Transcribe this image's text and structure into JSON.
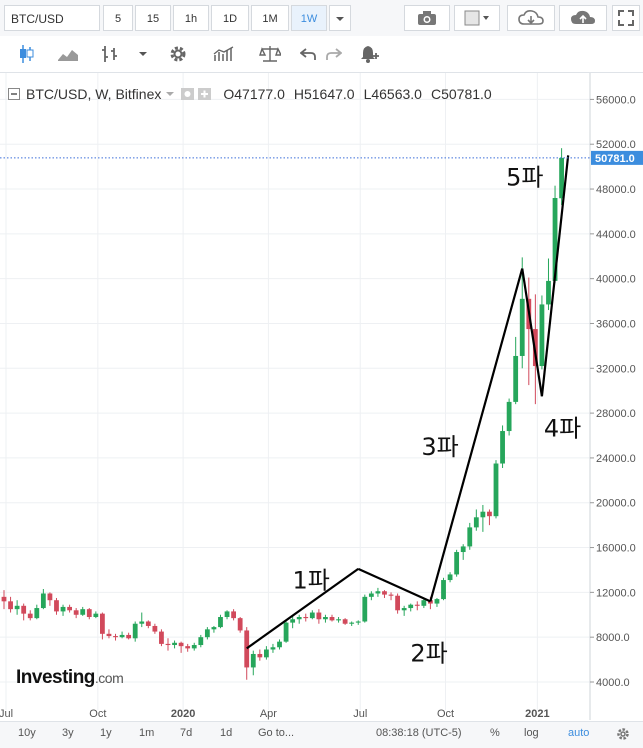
{
  "symbol": "BTC/USD",
  "timeframes": [
    "5",
    "15",
    "1h",
    "1D",
    "1M",
    "1W"
  ],
  "active_timeframe": "1W",
  "legend": {
    "title": "BTC/USD, W, Bitfinex",
    "open": "O47177.0",
    "high": "H51647.0",
    "low": "L46563.0",
    "close": "C50781.0"
  },
  "price_tag": "50781.0",
  "bottom": {
    "ranges": [
      "10y",
      "3y",
      "1y",
      "1m",
      "7d",
      "1d"
    ],
    "goto": "Go to...",
    "time": "08:38:18 (UTC-5)",
    "pct": "%",
    "log": "log",
    "auto": "auto"
  },
  "logo": {
    "main": "Investing",
    "suffix": ".com"
  },
  "colors": {
    "up": "#26a65b",
    "down": "#d1495b",
    "accent": "#3c8dde",
    "grid": "#eef0f3"
  },
  "chart_data": {
    "type": "candlestick",
    "title": "BTC/USD, W, Bitfinex",
    "y_ticks": [
      4000,
      8000,
      12000,
      16000,
      20000,
      24000,
      28000,
      32000,
      36000,
      40000,
      44000,
      48000,
      52000,
      56000
    ],
    "y_tick_labels": [
      "4000.0",
      "8000.0",
      "12000.0",
      "16000.0",
      "20000.0",
      "24000.0",
      "28000.0",
      "32000.0",
      "36000.0",
      "40000.0",
      "44000.0",
      "48000.0",
      "52000.0",
      "56000.0"
    ],
    "ylim": [
      1500,
      58000
    ],
    "x_tick_labels": [
      "Jul",
      "Oct",
      "2020",
      "Apr",
      "Jul",
      "Oct",
      "2021"
    ],
    "last_close": 50781.0,
    "candles": [
      [
        11600,
        12200,
        10500,
        11200
      ],
      [
        11200,
        11600,
        10200,
        10500
      ],
      [
        10500,
        11300,
        10000,
        10800
      ],
      [
        10800,
        11000,
        9500,
        10100
      ],
      [
        10100,
        10400,
        9500,
        9700
      ],
      [
        9700,
        10900,
        9600,
        10600
      ],
      [
        10600,
        12300,
        10500,
        11900
      ],
      [
        11900,
        12000,
        10800,
        11300
      ],
      [
        11300,
        11500,
        10000,
        10300
      ],
      [
        10300,
        10900,
        9900,
        10700
      ],
      [
        10700,
        10900,
        10200,
        10400
      ],
      [
        10400,
        10600,
        9700,
        10000
      ],
      [
        10000,
        10700,
        9900,
        10500
      ],
      [
        10500,
        10600,
        9600,
        9800
      ],
      [
        9800,
        10300,
        9700,
        10100
      ],
      [
        10100,
        10200,
        7800,
        8300
      ],
      [
        8300,
        8700,
        7900,
        8100
      ],
      [
        8100,
        8300,
        7700,
        8000
      ],
      [
        8000,
        8500,
        7900,
        8200
      ],
      [
        8200,
        8400,
        7800,
        7900
      ],
      [
        7900,
        9400,
        7600,
        9200
      ],
      [
        9200,
        10200,
        8900,
        9400
      ],
      [
        9400,
        9500,
        8800,
        9000
      ],
      [
        9000,
        9200,
        8300,
        8500
      ],
      [
        8500,
        8700,
        7200,
        7400
      ],
      [
        7400,
        7900,
        6800,
        7300
      ],
      [
        7300,
        7700,
        7000,
        7500
      ],
      [
        7500,
        7600,
        6600,
        7200
      ],
      [
        7200,
        7400,
        6700,
        7000
      ],
      [
        7000,
        7500,
        6800,
        7300
      ],
      [
        7300,
        8200,
        7100,
        8000
      ],
      [
        8000,
        8900,
        7800,
        8700
      ],
      [
        8700,
        9000,
        8400,
        8900
      ],
      [
        8900,
        10000,
        8800,
        9800
      ],
      [
        9800,
        10400,
        9600,
        10300
      ],
      [
        10300,
        10500,
        9500,
        9700
      ],
      [
        9700,
        9800,
        8400,
        8600
      ],
      [
        8600,
        8900,
        4200,
        5300
      ],
      [
        5300,
        6800,
        4600,
        6500
      ],
      [
        6500,
        6900,
        5900,
        6200
      ],
      [
        6200,
        7200,
        6000,
        6900
      ],
      [
        6900,
        7400,
        6600,
        7100
      ],
      [
        7100,
        7800,
        6900,
        7600
      ],
      [
        7600,
        9500,
        7500,
        9300
      ],
      [
        9300,
        10000,
        8800,
        9600
      ],
      [
        9600,
        10000,
        9200,
        9800
      ],
      [
        9800,
        10100,
        9400,
        9700
      ],
      [
        9700,
        10400,
        9600,
        10200
      ],
      [
        10200,
        10500,
        9200,
        9600
      ],
      [
        9600,
        10000,
        9300,
        9800
      ],
      [
        9800,
        10000,
        9400,
        9500
      ],
      [
        9500,
        9800,
        9300,
        9600
      ],
      [
        9600,
        9700,
        9100,
        9200
      ],
      [
        9200,
        9400,
        9000,
        9300
      ],
      [
        9300,
        9500,
        9100,
        9400
      ],
      [
        9400,
        11800,
        9300,
        11600
      ],
      [
        11600,
        12100,
        11300,
        11900
      ],
      [
        11900,
        12400,
        11600,
        12100
      ],
      [
        12100,
        12200,
        11500,
        11800
      ],
      [
        11800,
        12000,
        11300,
        11700
      ],
      [
        11700,
        11900,
        10100,
        10400
      ],
      [
        10400,
        10800,
        9900,
        10600
      ],
      [
        10600,
        11000,
        10300,
        10900
      ],
      [
        10900,
        11200,
        10400,
        10800
      ],
      [
        10800,
        11500,
        10600,
        11300
      ],
      [
        11300,
        11600,
        10500,
        11000
      ],
      [
        11000,
        11500,
        10700,
        11400
      ],
      [
        11400,
        13300,
        11300,
        13100
      ],
      [
        13100,
        13800,
        12900,
        13600
      ],
      [
        13600,
        15800,
        13400,
        15600
      ],
      [
        15600,
        16300,
        14900,
        16100
      ],
      [
        16100,
        18200,
        15800,
        17800
      ],
      [
        17800,
        19400,
        17500,
        18700
      ],
      [
        18700,
        19800,
        17400,
        19200
      ],
      [
        19200,
        19400,
        18000,
        18800
      ],
      [
        18800,
        23800,
        18600,
        23500
      ],
      [
        23500,
        26900,
        23100,
        26400
      ],
      [
        26400,
        29300,
        26000,
        29000
      ],
      [
        29000,
        34800,
        28800,
        33100
      ],
      [
        33100,
        41900,
        32000,
        38200
      ],
      [
        38200,
        40100,
        30500,
        35500
      ],
      [
        35500,
        38600,
        28800,
        32200
      ],
      [
        32200,
        38500,
        31900,
        37700
      ],
      [
        37700,
        41800,
        37200,
        39800
      ],
      [
        39800,
        48300,
        39600,
        47200
      ],
      [
        47177,
        51647,
        46563,
        50781
      ]
    ],
    "annotations": [
      {
        "label": "1파",
        "from": [
          37,
          7000
        ],
        "to": [
          54,
          14100
        ]
      },
      {
        "label": "2파",
        "from": [
          54,
          14100
        ],
        "to": [
          65,
          11200
        ]
      },
      {
        "label": "3파",
        "from": [
          65,
          11200
        ],
        "to": [
          79,
          40900
        ]
      },
      {
        "label": "4파",
        "from": [
          79,
          40900
        ],
        "to": [
          82,
          29500
        ]
      },
      {
        "label": "5파",
        "from": [
          82,
          29500
        ],
        "to": [
          86,
          51000
        ]
      }
    ]
  }
}
